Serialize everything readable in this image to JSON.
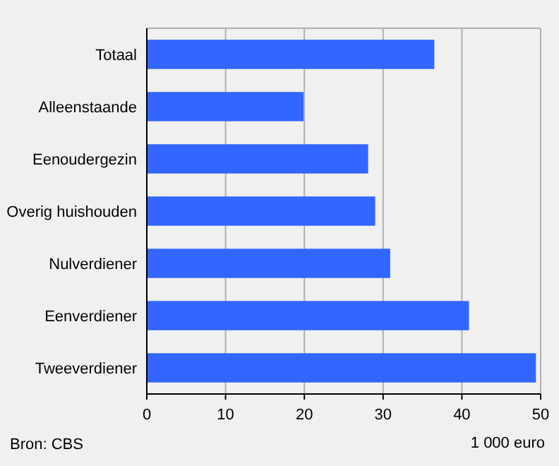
{
  "chart_data": {
    "type": "bar",
    "orientation": "horizontal",
    "categories": [
      "Totaal",
      "Alleenstaande",
      "Eenoudergezin",
      "Overig huishouden",
      "Nulverdiener",
      "Eenverdiener",
      "Tweeverdiener"
    ],
    "values": [
      36.5,
      19.9,
      28.1,
      29.0,
      30.9,
      40.9,
      49.4
    ],
    "color": "#3366ff",
    "xlim": [
      0,
      50
    ],
    "xticks": [
      0,
      10,
      20,
      30,
      40,
      50
    ],
    "grid": "x",
    "xlabel": "1 000 euro",
    "annotations": [
      "Bron: CBS"
    ]
  }
}
